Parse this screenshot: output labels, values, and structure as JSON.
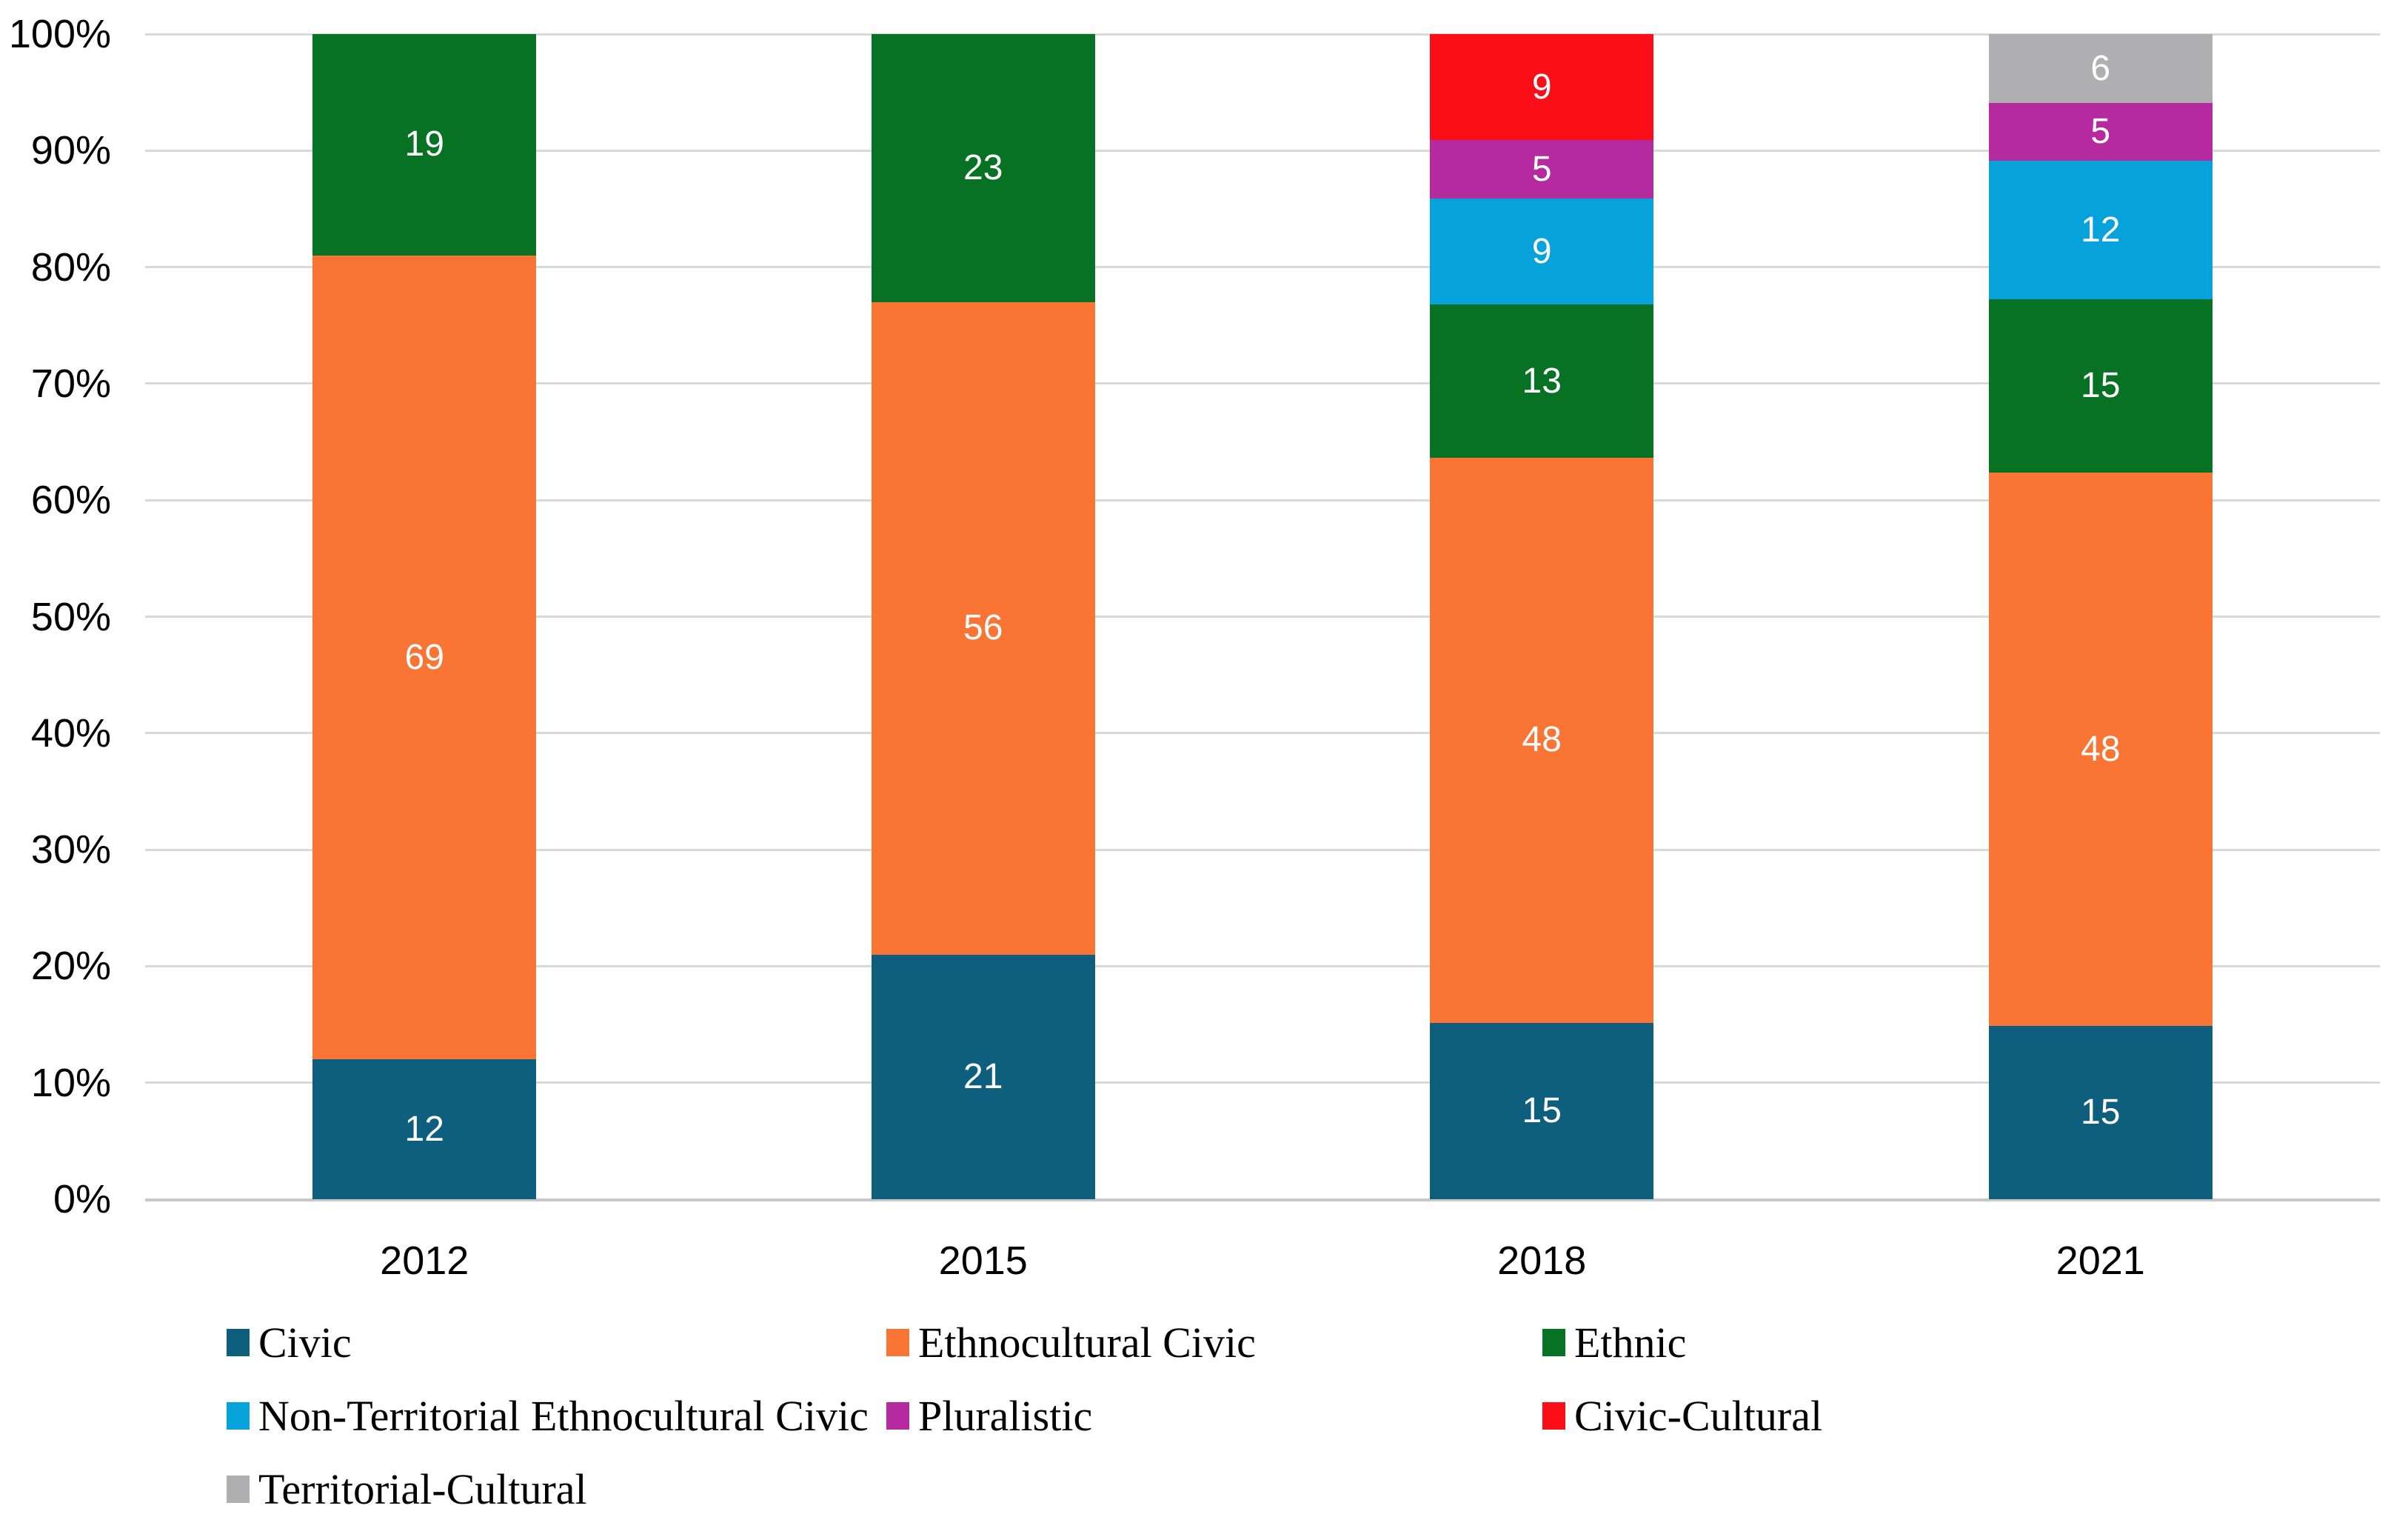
{
  "chart_data": {
    "type": "bar",
    "stacked": true,
    "percent_axis": true,
    "title": "",
    "xlabel": "",
    "ylabel": "",
    "categories": [
      "2012",
      "2015",
      "2018",
      "2021"
    ],
    "series": [
      {
        "name": "Civic",
        "color": "#0E5F7E",
        "values": [
          12,
          21,
          15,
          15
        ]
      },
      {
        "name": "Ethnocultural Civic",
        "color": "#FA7433",
        "values": [
          69,
          56,
          48,
          48
        ]
      },
      {
        "name": "Ethnic",
        "color": "#077223",
        "values": [
          19,
          23,
          13,
          15
        ]
      },
      {
        "name": "Non-Territorial Ethnocultural Civic",
        "color": "#05A2DB",
        "values": [
          null,
          null,
          9,
          12
        ]
      },
      {
        "name": "Pluralistic",
        "color": "#B62AA0",
        "values": [
          null,
          null,
          5,
          5
        ]
      },
      {
        "name": "Civic-Cultural",
        "color": "#FB0E18",
        "values": [
          null,
          null,
          9,
          null
        ]
      },
      {
        "name": "Territorial-Cultural",
        "color": "#AFAFB1",
        "values": [
          null,
          null,
          null,
          6
        ]
      }
    ],
    "y_axis": {
      "min": 0,
      "max": 100,
      "step": 10,
      "tick_labels": [
        "0%",
        "10%",
        "20%",
        "30%",
        "40%",
        "50%",
        "60%",
        "70%",
        "80%",
        "90%",
        "100%"
      ]
    },
    "grid": true,
    "legend_position": "bottom"
  },
  "style": {
    "background": "#FFFFFF",
    "grid_color": "#D9D9D9",
    "axis_line_color": "#C9C7C7",
    "value_label_color": "#FFFFFF",
    "text_color": "#000000"
  }
}
